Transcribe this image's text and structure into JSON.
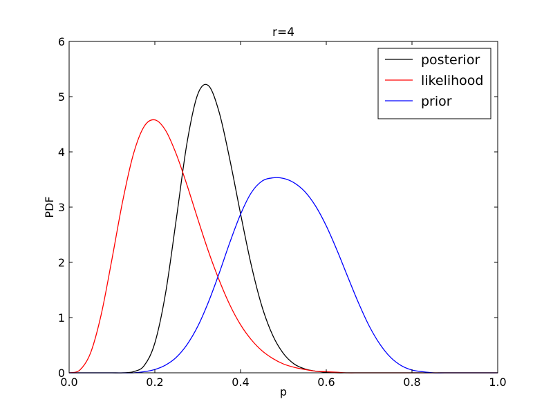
{
  "chart_data": {
    "type": "line",
    "title": "r=4",
    "xlabel": "p",
    "ylabel": "PDF",
    "xlim": [
      0.0,
      1.0
    ],
    "ylim": [
      0,
      6
    ],
    "xticks": [
      0.0,
      0.2,
      0.4,
      0.6,
      0.8,
      1.0
    ],
    "xtick_labels": [
      "0.0",
      "0.2",
      "0.4",
      "0.6",
      "0.8",
      "1.0"
    ],
    "yticks": [
      0,
      1,
      2,
      3,
      4,
      5,
      6
    ],
    "ytick_labels": [
      "0",
      "1",
      "2",
      "3",
      "4",
      "5",
      "6"
    ],
    "grid": false,
    "legend_position": "top-right",
    "x": [
      0.0,
      0.025,
      0.05,
      0.075,
      0.1,
      0.125,
      0.15,
      0.175,
      0.2,
      0.225,
      0.25,
      0.275,
      0.3,
      0.325,
      0.35,
      0.375,
      0.4,
      0.425,
      0.45,
      0.475,
      0.5,
      0.525,
      0.55,
      0.575,
      0.6,
      0.625,
      0.65,
      0.675,
      0.7,
      0.725,
      0.75,
      0.775,
      0.8,
      0.825,
      0.85,
      0.875,
      0.9,
      0.925,
      0.95,
      0.975,
      1.0
    ],
    "series": [
      {
        "name": "posterior",
        "color": "#000000",
        "values": [
          0.0,
          0.0,
          0.0,
          0.0,
          0.0,
          0.0,
          0.02,
          0.13,
          0.54,
          1.44,
          2.78,
          4.16,
          5.04,
          5.2,
          4.72,
          3.86,
          2.88,
          1.95,
          1.2,
          0.68,
          0.35,
          0.16,
          0.07,
          0.03,
          0.01,
          0.0,
          0.0,
          0.0,
          0.0,
          0.0,
          0.0,
          0.0,
          0.0,
          0.0,
          0.0,
          0.0,
          0.0,
          0.0,
          0.0,
          0.0,
          0.0
        ]
      },
      {
        "name": "likelihood",
        "color": "#ff0000",
        "values": [
          0.0,
          0.05,
          0.36,
          1.06,
          2.06,
          3.11,
          3.96,
          4.46,
          4.58,
          4.39,
          3.96,
          3.4,
          2.79,
          2.2,
          1.68,
          1.23,
          0.87,
          0.6,
          0.4,
          0.26,
          0.16,
          0.1,
          0.06,
          0.03,
          0.02,
          0.01,
          0.0,
          0.0,
          0.0,
          0.0,
          0.0,
          0.0,
          0.0,
          0.0,
          0.0,
          0.0,
          0.0,
          0.0,
          0.0,
          0.0,
          0.0
        ]
      },
      {
        "name": "prior",
        "color": "#0000ff",
        "values": [
          0.0,
          0.0,
          0.0,
          0.0,
          0.0,
          0.0,
          0.0,
          0.02,
          0.06,
          0.14,
          0.28,
          0.51,
          0.84,
          1.28,
          1.8,
          2.36,
          2.87,
          3.26,
          3.47,
          3.53,
          3.52,
          3.44,
          3.28,
          3.02,
          2.66,
          2.22,
          1.74,
          1.27,
          0.85,
          0.52,
          0.28,
          0.13,
          0.05,
          0.02,
          0.0,
          0.0,
          0.0,
          0.0,
          0.0,
          0.0,
          0.0
        ]
      }
    ]
  }
}
